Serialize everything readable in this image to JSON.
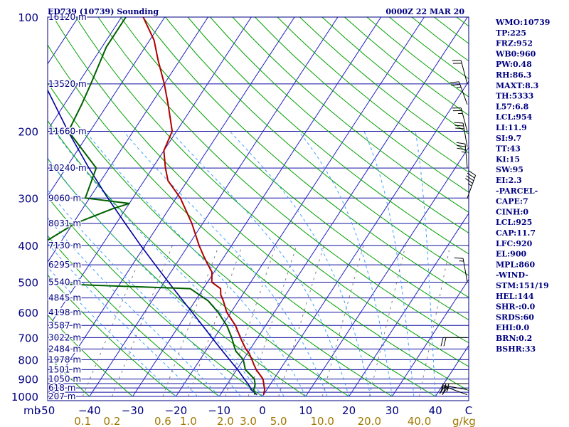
{
  "header": {
    "station": "ED739 (10739) Sounding",
    "time": "0000Z 22 MAR 20"
  },
  "colors": {
    "frame": "#000080",
    "isobar": "#1010a0",
    "isotherm": "#2020c0",
    "dry_adiabat": "#00a000",
    "moist_adiabat": "#40a0ff",
    "mixing_ratio": "#808080",
    "temperature": "#b00000",
    "dewpoint": "#006000",
    "parcel": "#0000a0",
    "wind": "#000000",
    "mixing_label": "#a07800"
  },
  "indices": [
    "WMO:10739",
    "TP:225",
    "FRZ:952",
    "WB0:960",
    "PW:0.48",
    "RH:86.3",
    "MAXT:8.3",
    "TH:5333",
    "L57:6.8",
    "LCL:954",
    "LI:11.9",
    "SI:9.7",
    "TT:43",
    "KI:15",
    "SW:95",
    "EI:2.3",
    "-PARCEL-",
    "CAPE:7",
    "CINH:0",
    "LCL:925",
    "CAP:11.7",
    "LFC:920",
    "EL:900",
    "MPL:860",
    "-WIND-",
    "STM:151/19",
    "HEL:144",
    "SHR-:0.0",
    "SRDS:60",
    "EHI:0.0",
    "BRN:0.2",
    "BSHR:33"
  ],
  "chart_data": {
    "type": "line",
    "diagram": "skew-T log-p",
    "pressure_unit": "mb",
    "temperature_unit": "C",
    "mixing_ratio_unit": "g/kg",
    "pressure_range": [
      1000,
      100
    ],
    "temperature_range": [
      -50,
      50
    ],
    "pressure_ticks": [
      {
        "p": 100,
        "label": "100"
      },
      {
        "p": 200,
        "label": "200"
      },
      {
        "p": 300,
        "label": "300"
      },
      {
        "p": 400,
        "label": "400"
      },
      {
        "p": 500,
        "label": "500"
      },
      {
        "p": 600,
        "label": "600"
      },
      {
        "p": 700,
        "label": "700"
      },
      {
        "p": 800,
        "label": "800"
      },
      {
        "p": 900,
        "label": "900"
      },
      {
        "p": 1000,
        "label": "1000"
      }
    ],
    "isobars": [
      100,
      150,
      200,
      250,
      300,
      350,
      400,
      450,
      500,
      550,
      600,
      650,
      700,
      750,
      800,
      850,
      900,
      925,
      950,
      975,
      1000
    ],
    "height_labels": [
      {
        "p": 100,
        "label": "16120 m"
      },
      {
        "p": 150,
        "label": "13520 m"
      },
      {
        "p": 200,
        "label": "11660 m"
      },
      {
        "p": 250,
        "label": "10240 m"
      },
      {
        "p": 300,
        "label": "9060 m"
      },
      {
        "p": 350,
        "label": "8031 m"
      },
      {
        "p": 400,
        "label": "7130 m"
      },
      {
        "p": 450,
        "label": "6295 m"
      },
      {
        "p": 500,
        "label": "5540 m"
      },
      {
        "p": 550,
        "label": "4845 m"
      },
      {
        "p": 600,
        "label": "4198 m"
      },
      {
        "p": 650,
        "label": "3587 m"
      },
      {
        "p": 700,
        "label": "3022 m"
      },
      {
        "p": 750,
        "label": "2484 m"
      },
      {
        "p": 800,
        "label": "1978 m"
      },
      {
        "p": 850,
        "label": "1501 m"
      },
      {
        "p": 900,
        "label": "1050 m"
      },
      {
        "p": 950,
        "label": "618 m"
      },
      {
        "p": 1000,
        "label": "207 m"
      }
    ],
    "temperature_ticks": [
      {
        "t": -50,
        "label": "-50"
      },
      {
        "t": -40,
        "label": "−40"
      },
      {
        "t": -30,
        "label": "−30"
      },
      {
        "t": -20,
        "label": "−20"
      },
      {
        "t": -10,
        "label": "−10"
      },
      {
        "t": 0,
        "label": "0"
      },
      {
        "t": 10,
        "label": "10"
      },
      {
        "t": 20,
        "label": "20"
      },
      {
        "t": 30,
        "label": "30"
      },
      {
        "t": 40,
        "label": "40"
      }
    ],
    "pressure_axis_label": "mb",
    "temperature_axis_label": "C",
    "mixing_ratio_ticks": [
      {
        "w": 0.1,
        "label": "0.1"
      },
      {
        "w": 0.2,
        "label": "0.2"
      },
      {
        "w": 0.6,
        "label": "0.6"
      },
      {
        "w": 1.0,
        "label": "1.0"
      },
      {
        "w": 2.0,
        "label": "2.0"
      },
      {
        "w": 3.0,
        "label": "3.0"
      },
      {
        "w": 5.0,
        "label": "5.0"
      },
      {
        "w": 10.0,
        "label": "10.0"
      },
      {
        "w": 20.0,
        "label": "20.0"
      },
      {
        "w": 40.0,
        "label": "40.0"
      }
    ],
    "mixing_ratio_axis_label": "g/kg",
    "temperature_profile": [
      {
        "p": 990,
        "t": 0.0
      },
      {
        "p": 960,
        "t": -0.5
      },
      {
        "p": 930,
        "t": -1.5
      },
      {
        "p": 900,
        "t": -2.5
      },
      {
        "p": 850,
        "t": -5.5
      },
      {
        "p": 820,
        "t": -7.0
      },
      {
        "p": 800,
        "t": -8.0
      },
      {
        "p": 770,
        "t": -9.6
      },
      {
        "p": 750,
        "t": -11.0
      },
      {
        "p": 720,
        "t": -12.8
      },
      {
        "p": 700,
        "t": -14.0
      },
      {
        "p": 650,
        "t": -17.0
      },
      {
        "p": 600,
        "t": -21.0
      },
      {
        "p": 560,
        "t": -23.5
      },
      {
        "p": 540,
        "t": -25.0
      },
      {
        "p": 520,
        "t": -26.0
      },
      {
        "p": 500,
        "t": -29.0
      },
      {
        "p": 470,
        "t": -30.5
      },
      {
        "p": 450,
        "t": -32.5
      },
      {
        "p": 430,
        "t": -34.5
      },
      {
        "p": 400,
        "t": -37.5
      },
      {
        "p": 350,
        "t": -42.5
      },
      {
        "p": 300,
        "t": -49.0
      },
      {
        "p": 270,
        "t": -54.5
      },
      {
        "p": 250,
        "t": -57.0
      },
      {
        "p": 225,
        "t": -60.0
      },
      {
        "p": 200,
        "t": -61.0
      },
      {
        "p": 170,
        "t": -66.0
      },
      {
        "p": 150,
        "t": -70.0
      },
      {
        "p": 130,
        "t": -75.0
      },
      {
        "p": 115,
        "t": -79.0
      },
      {
        "p": 100,
        "t": -85.0
      }
    ],
    "dewpoint_profile": [
      {
        "p": 990,
        "t": -2.0
      },
      {
        "p": 960,
        "t": -3.0
      },
      {
        "p": 930,
        "t": -3.5
      },
      {
        "p": 900,
        "t": -4.5
      },
      {
        "p": 850,
        "t": -8.0
      },
      {
        "p": 800,
        "t": -10.0
      },
      {
        "p": 760,
        "t": -13.0
      },
      {
        "p": 740,
        "t": -14.0
      },
      {
        "p": 700,
        "t": -16.0
      },
      {
        "p": 650,
        "t": -19.0
      },
      {
        "p": 600,
        "t": -23.0
      },
      {
        "p": 560,
        "t": -27.0
      },
      {
        "p": 520,
        "t": -33.0
      },
      {
        "p": 505,
        "t": -65.0
      },
      {
        "p": 500,
        "t": -67.0
      },
      {
        "p": 450,
        "t": -74.0
      },
      {
        "p": 400,
        "t": -74.5
      },
      {
        "p": 350,
        "t": -69.5
      },
      {
        "p": 320,
        "t": -63.0
      },
      {
        "p": 310,
        "t": -60.0
      },
      {
        "p": 300,
        "t": -71.0
      },
      {
        "p": 250,
        "t": -73.0
      },
      {
        "p": 200,
        "t": -85.0
      },
      {
        "p": 170,
        "t": -86.0
      },
      {
        "p": 150,
        "t": -87.0
      },
      {
        "p": 120,
        "t": -89.0
      },
      {
        "p": 100,
        "t": -89.0
      }
    ],
    "parcel_profile": [
      {
        "p": 990,
        "t": -1.5
      },
      {
        "p": 960,
        "t": -3.6
      },
      {
        "p": 940,
        "t": -4.5
      },
      {
        "p": 900,
        "t": -6.8
      },
      {
        "p": 850,
        "t": -9.8
      },
      {
        "p": 800,
        "t": -13.2
      },
      {
        "p": 750,
        "t": -16.8
      },
      {
        "p": 700,
        "t": -20.6
      },
      {
        "p": 650,
        "t": -24.6
      },
      {
        "p": 600,
        "t": -29.0
      },
      {
        "p": 550,
        "t": -33.8
      },
      {
        "p": 500,
        "t": -39.0
      },
      {
        "p": 450,
        "t": -44.7
      },
      {
        "p": 400,
        "t": -51.0
      },
      {
        "p": 350,
        "t": -57.9
      },
      {
        "p": 300,
        "t": -65.8
      },
      {
        "p": 250,
        "t": -74.7
      },
      {
        "p": 200,
        "t": -85.1
      },
      {
        "p": 150,
        "t": -97.7
      },
      {
        "p": 100,
        "t": -114.4
      }
    ],
    "wind_profile": [
      {
        "p": 990,
        "dir": 290,
        "spd": 20
      },
      {
        "p": 960,
        "dir": 280,
        "spd": 25
      },
      {
        "p": 925,
        "dir": 270,
        "spd": 30
      },
      {
        "p": 700,
        "dir": 270,
        "spd": 20
      },
      {
        "p": 500,
        "dir": 350,
        "spd": 15
      },
      {
        "p": 300,
        "dir": 20,
        "spd": 45
      },
      {
        "p": 250,
        "dir": 355,
        "spd": 35
      },
      {
        "p": 220,
        "dir": 350,
        "spd": 30
      },
      {
        "p": 200,
        "dir": 345,
        "spd": 25
      },
      {
        "p": 170,
        "dir": 340,
        "spd": 25
      },
      {
        "p": 150,
        "dir": 345,
        "spd": 20
      }
    ]
  }
}
